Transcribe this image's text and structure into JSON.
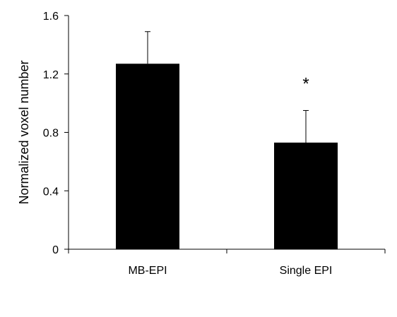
{
  "chart_data": {
    "type": "bar",
    "categories": [
      "MB-EPI",
      "Single EPI"
    ],
    "values": [
      1.27,
      0.73
    ],
    "errors": [
      0.22,
      0.22
    ],
    "title": "",
    "xlabel": "",
    "ylabel": "Normalized voxel number",
    "ylim": [
      0,
      1.6
    ],
    "yticks": [
      0,
      0.4,
      0.8,
      1.2,
      1.6
    ],
    "ytick_labels": [
      "0",
      "0.4",
      "0.8",
      "1.2",
      "1.6"
    ],
    "annotations": [
      {
        "category": "Single EPI",
        "text": "*"
      }
    ],
    "grid": false,
    "legend": "none",
    "bar_color": "#000000"
  }
}
